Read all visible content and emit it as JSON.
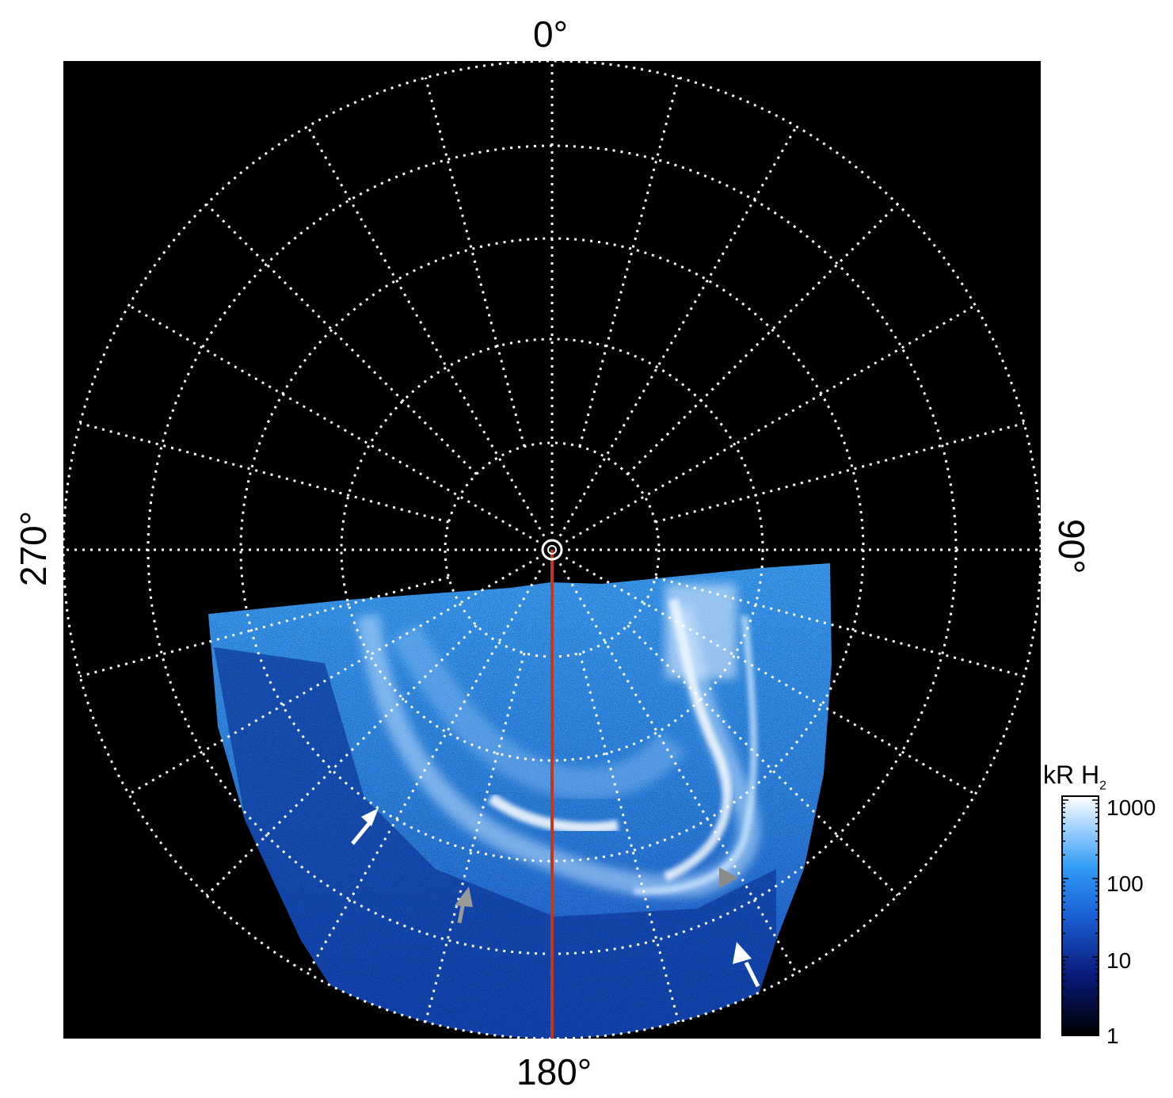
{
  "axis_labels": {
    "top": "0°",
    "right": "90°",
    "bottom": "180°",
    "left": "270°"
  },
  "colorbar": {
    "title": "kR H",
    "title_subscript": "2",
    "ticks": [
      "1000",
      "100",
      "10",
      "1"
    ]
  },
  "colors": {
    "background": "#000000",
    "grid": "#ffffff",
    "meridian": "#c0391f",
    "aurora_bright": "#e8f3ff",
    "aurora_mid": "#2f8be8",
    "aurora_dark": "#0a2a8f"
  },
  "annotations": [
    {
      "name": "white-arrow-left",
      "color": "#ffffff"
    },
    {
      "name": "gray-arrow-middle",
      "color": "#9a9a9a"
    },
    {
      "name": "gray-triangle-right",
      "color": "#8a8a8a"
    },
    {
      "name": "white-arrow-right",
      "color": "#ffffff"
    }
  ]
}
